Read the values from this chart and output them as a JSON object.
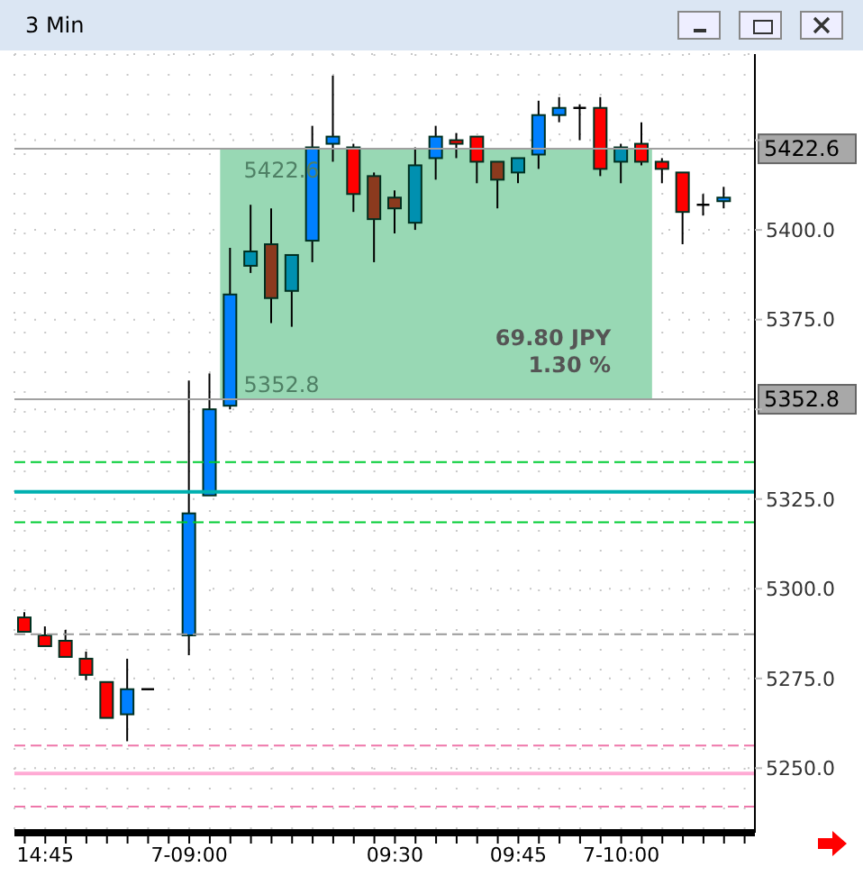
{
  "chart_data": {
    "type": "candlestick",
    "title": "3 Min",
    "categories": [
      null,
      "14:45",
      null,
      null,
      null,
      null,
      null,
      null,
      "7-09:00",
      null,
      null,
      null,
      null,
      null,
      null,
      null,
      null,
      null,
      "09:30",
      null,
      null,
      null,
      null,
      null,
      "09:45",
      null,
      null,
      null,
      null,
      "7-10:00",
      null,
      null,
      null,
      null,
      null,
      null
    ],
    "ohlc": [
      [
        5292,
        5293.5,
        5288,
        5288
      ],
      [
        5287,
        5289.5,
        5284,
        5284
      ],
      [
        5285.5,
        5288.5,
        5281,
        5281
      ],
      [
        5280.5,
        5282.5,
        5274.5,
        5276
      ],
      [
        5274,
        5274,
        5264,
        5264
      ],
      [
        5265,
        5280.5,
        5257.5,
        5272
      ],
      [
        5272,
        5272,
        5272,
        5272
      ],
      null,
      [
        5287,
        5358,
        5281.5,
        5321
      ],
      [
        5326,
        5360,
        5326,
        5350
      ],
      [
        5351,
        5395,
        5350,
        5382
      ],
      [
        5390,
        5407,
        5388,
        5394
      ],
      [
        5396,
        5406,
        5374,
        5381
      ],
      [
        5383,
        5393,
        5373,
        5393
      ],
      [
        5397,
        5429,
        5391,
        5423
      ],
      [
        5424,
        5443,
        5419,
        5426
      ],
      [
        5423,
        5424,
        5405,
        5410
      ],
      [
        5415,
        5416,
        5391,
        5403
      ],
      [
        5409,
        5411,
        5399,
        5406
      ],
      [
        5402,
        5423,
        5400,
        5418
      ],
      [
        5420,
        5429,
        5414,
        5426
      ],
      [
        5425,
        5427,
        5420,
        5424
      ],
      [
        5426,
        5426,
        5413,
        5419
      ],
      [
        5419,
        5419,
        5406,
        5414
      ],
      [
        5416,
        5420,
        5413,
        5420
      ],
      [
        5421,
        5436,
        5417,
        5432
      ],
      [
        5432,
        5437,
        5430,
        5434
      ],
      [
        5434,
        5435,
        5425,
        5434
      ],
      [
        5434,
        5437,
        5415,
        5417
      ],
      [
        5419,
        5424,
        5413,
        5423
      ],
      [
        5424,
        5430,
        5418,
        5419
      ],
      [
        5419,
        5420,
        5413,
        5417
      ],
      [
        5416,
        5416,
        5396,
        5405
      ],
      [
        5407,
        5410,
        5404,
        5407
      ],
      [
        5408,
        5412,
        5406,
        5409
      ],
      null
    ],
    "colors": [
      "#ff0000",
      "#ff0000",
      "#ff0000",
      "#ff0000",
      "#ff0000",
      "#0080ff",
      "#000000",
      null,
      "#0080ff",
      "#0080ff",
      "#0080ff",
      "#0090b0",
      "#8b3a1e",
      "#0090b0",
      "#0080ff",
      "#0080ff",
      "#ff0000",
      "#8b3a1e",
      "#8b3a1e",
      "#0090b0",
      "#0080ff",
      "#ff0000",
      "#ff0000",
      "#8b3a1e",
      "#0090b0",
      "#0080ff",
      "#0080ff",
      "#000000",
      "#ff0000",
      "#0090b0",
      "#ff0000",
      "#ff0000",
      "#ff0000",
      "#000000",
      "#0080ff",
      null
    ],
    "ylim": [
      5232,
      5449
    ],
    "yticks": [
      {
        "value": 5250,
        "label": "5250.0"
      },
      {
        "value": 5275,
        "label": "5275.0"
      },
      {
        "value": 5300,
        "label": "5300.0"
      },
      {
        "value": 5325,
        "label": "5325.0"
      },
      {
        "value": 5350,
        "label": null
      },
      {
        "value": 5375,
        "label": "5375.0"
      },
      {
        "value": 5400,
        "label": "5400.0"
      },
      {
        "value": 5425,
        "label": null
      }
    ],
    "grid": true,
    "ref_lines": [
      {
        "axis": "y",
        "value": 5422.6,
        "label": "5422.6",
        "color": "#a0a0a0",
        "line_style": "solid"
      },
      {
        "axis": "y",
        "value": 5352.8,
        "label": "5352.8",
        "color": "#a0a0a0",
        "line_style": "solid"
      },
      {
        "axis": "y",
        "value": 5335.3,
        "color": "#00cc33",
        "line_style": "dashed"
      },
      {
        "axis": "y",
        "value": 5327,
        "color": "#00b0b0",
        "line_style": "solid"
      },
      {
        "axis": "y",
        "value": 5318.5,
        "color": "#00cc33",
        "line_style": "dashed"
      },
      {
        "axis": "y",
        "value": 5287.3,
        "color": "#999999",
        "line_style": "dashed"
      },
      {
        "axis": "y",
        "value": 5256.3,
        "color": "#ee77aa",
        "line_style": "dashed"
      },
      {
        "axis": "y",
        "value": 5248.5,
        "color": "#ffaad4",
        "line_style": "solid"
      },
      {
        "axis": "y",
        "value": 5239.3,
        "color": "#ee77aa",
        "line_style": "dashed"
      }
    ],
    "bands": [
      {
        "axis": "y",
        "from": 5352.8,
        "to": 5422.6,
        "color": "#98d8b4"
      }
    ],
    "annotations": [
      {
        "text": "5422.6",
        "y": 5422.6
      },
      {
        "text": "5352.8",
        "y": 5352.8
      },
      "69.80 JPY",
      "1.30 %"
    ]
  }
}
